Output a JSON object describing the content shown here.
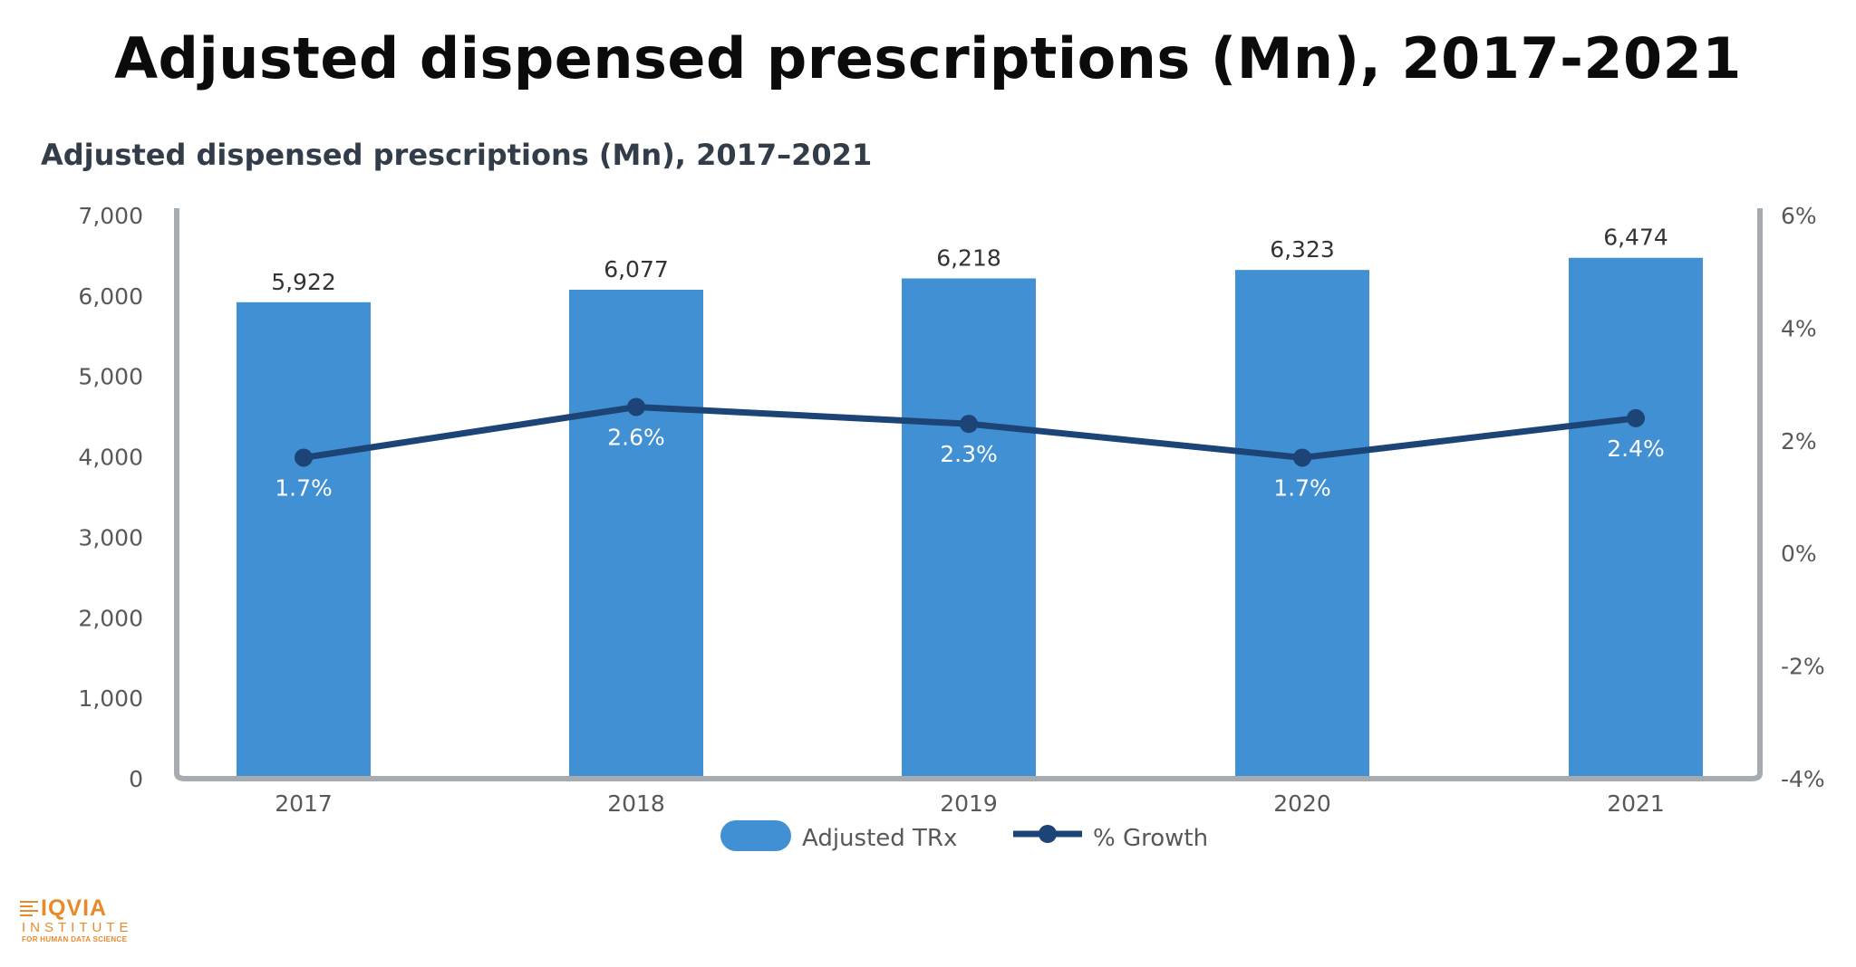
{
  "page": {
    "title": "Adjusted dispensed prescriptions (Mn), 2017-2021"
  },
  "chart_data": {
    "type": "bar",
    "title": "Adjusted dispensed prescriptions (Mn), 2017–2021",
    "categories": [
      "2017",
      "2018",
      "2019",
      "2020",
      "2021"
    ],
    "series": [
      {
        "name": "Adjusted TRx",
        "type": "bar",
        "axis": "left",
        "values": [
          5922,
          6077,
          6218,
          6323,
          6474
        ],
        "labels": [
          "5,922",
          "6,077",
          "6,218",
          "6,323",
          "6,474"
        ],
        "color": "#4190d3"
      },
      {
        "name": "% Growth",
        "type": "line",
        "axis": "right",
        "values": [
          1.7,
          2.6,
          2.3,
          1.7,
          2.4
        ],
        "labels": [
          "1.7%",
          "2.6%",
          "2.3%",
          "1.7%",
          "2.4%"
        ],
        "color": "#1d4477"
      }
    ],
    "y_left": {
      "min": 0,
      "max": 7000,
      "ticks": [
        0,
        1000,
        2000,
        3000,
        4000,
        5000,
        6000,
        7000
      ],
      "tick_labels": [
        "0",
        "1,000",
        "2,000",
        "3,000",
        "4,000",
        "5,000",
        "6,000",
        "7,000"
      ]
    },
    "y_right": {
      "min": -4,
      "max": 6,
      "ticks": [
        -4,
        -2,
        0,
        2,
        4,
        6
      ],
      "tick_labels": [
        "-4%",
        "-2%",
        "0%",
        "2%",
        "4%",
        "6%"
      ]
    },
    "grid": false,
    "legend": "bottom-center",
    "colors": {
      "frame": "#a6abb1",
      "axis_text": "#585858",
      "subtitle": "#333d4a"
    }
  },
  "logo": {
    "name": "IQVIA",
    "sub": "INSTITUTE",
    "tagline": "FOR HUMAN DATA SCIENCE",
    "color": "#e88a2a"
  }
}
